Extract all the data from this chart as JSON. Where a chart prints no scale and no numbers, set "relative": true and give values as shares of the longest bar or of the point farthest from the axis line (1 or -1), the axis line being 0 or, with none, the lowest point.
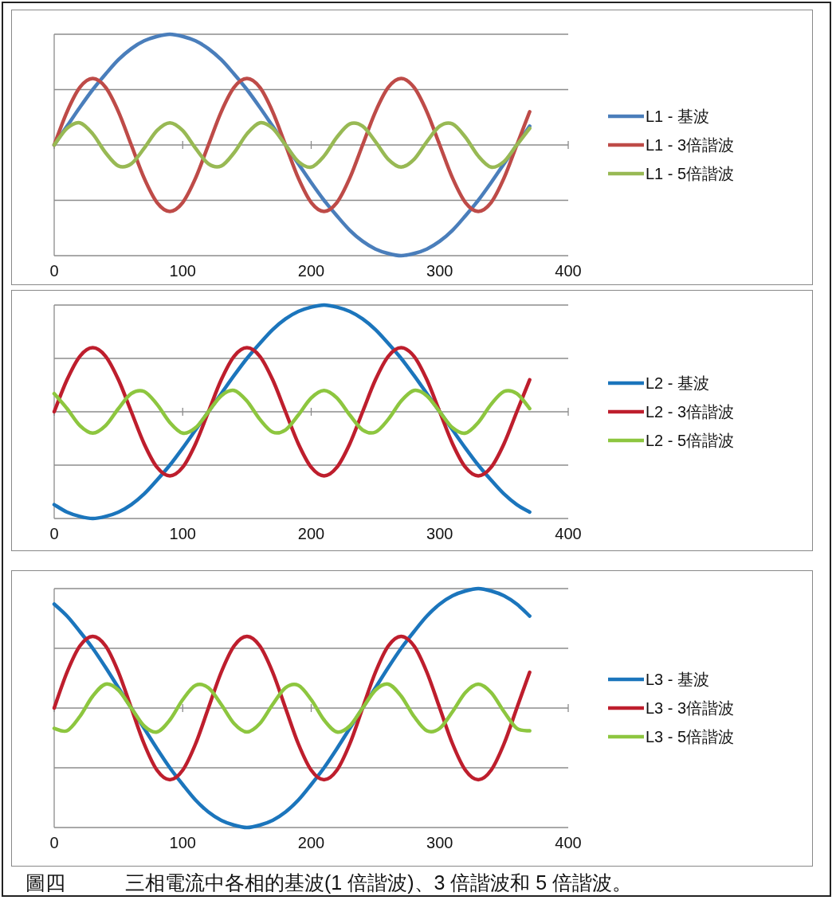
{
  "chart_data": [
    {
      "type": "line",
      "relative": true,
      "xlim": [
        0,
        400
      ],
      "xticks": [
        0,
        100,
        200,
        300,
        400
      ],
      "grid": "y",
      "legend": "right",
      "x": [
        0,
        10,
        20,
        30,
        40,
        50,
        60,
        70,
        80,
        90,
        100,
        110,
        120,
        130,
        140,
        150,
        160,
        170,
        180,
        190,
        200,
        210,
        220,
        230,
        240,
        250,
        260,
        270,
        280,
        290,
        300,
        310,
        320,
        330,
        340,
        350,
        360,
        370
      ],
      "series": [
        {
          "name": "L1 - 基波",
          "color": "#4a7ebb",
          "values": [
            0,
            0.17,
            0.34,
            0.5,
            0.64,
            0.77,
            0.87,
            0.94,
            0.98,
            1,
            0.98,
            0.94,
            0.87,
            0.77,
            0.64,
            0.5,
            0.34,
            0.17,
            0,
            -0.17,
            -0.34,
            -0.5,
            -0.64,
            -0.77,
            -0.87,
            -0.94,
            -0.98,
            -1,
            -0.98,
            -0.94,
            -0.87,
            -0.77,
            -0.64,
            -0.5,
            -0.34,
            -0.17,
            0,
            0.17
          ]
        },
        {
          "name": "L1 - 3倍諧波",
          "color": "#be4b48",
          "values": [
            0,
            0.3,
            0.52,
            0.6,
            0.52,
            0.3,
            0,
            -0.3,
            -0.52,
            -0.6,
            -0.52,
            -0.3,
            0,
            0.3,
            0.52,
            0.6,
            0.52,
            0.3,
            0,
            -0.3,
            -0.52,
            -0.6,
            -0.52,
            -0.3,
            0,
            0.3,
            0.52,
            0.6,
            0.52,
            0.3,
            0,
            -0.3,
            -0.52,
            -0.6,
            -0.52,
            -0.3,
            0,
            0.3
          ]
        },
        {
          "name": "L1 - 5倍諧波",
          "color": "#98b954",
          "values": [
            0,
            0.15,
            0.2,
            0.1,
            -0.07,
            -0.19,
            -0.17,
            -0.03,
            0.13,
            0.2,
            0.13,
            -0.03,
            -0.17,
            -0.19,
            -0.07,
            0.1,
            0.2,
            0.15,
            0,
            -0.15,
            -0.2,
            -0.1,
            0.07,
            0.19,
            0.17,
            0.03,
            -0.13,
            -0.2,
            -0.13,
            0.03,
            0.17,
            0.19,
            0.07,
            -0.1,
            -0.2,
            -0.15,
            0,
            0.15
          ]
        }
      ]
    },
    {
      "type": "line",
      "relative": true,
      "xlim": [
        0,
        400
      ],
      "xticks": [
        0,
        100,
        200,
        300,
        400
      ],
      "grid": "y",
      "legend": "right",
      "x": [
        0,
        10,
        20,
        30,
        40,
        50,
        60,
        70,
        80,
        90,
        100,
        110,
        120,
        130,
        140,
        150,
        160,
        170,
        180,
        190,
        200,
        210,
        220,
        230,
        240,
        250,
        260,
        270,
        280,
        290,
        300,
        310,
        320,
        330,
        340,
        350,
        360,
        370
      ],
      "series": [
        {
          "name": "L2 - 基波",
          "color": "#1b75bc",
          "values": [
            -0.87,
            -0.94,
            -0.98,
            -1,
            -0.98,
            -0.94,
            -0.87,
            -0.77,
            -0.64,
            -0.5,
            -0.34,
            -0.17,
            0,
            0.17,
            0.34,
            0.5,
            0.64,
            0.77,
            0.87,
            0.94,
            0.98,
            1,
            0.98,
            0.94,
            0.87,
            0.77,
            0.64,
            0.5,
            0.34,
            0.17,
            0,
            -0.17,
            -0.34,
            -0.5,
            -0.64,
            -0.77,
            -0.87,
            -0.94
          ]
        },
        {
          "name": "L2 - 3倍諧波",
          "color": "#be1e2d",
          "values": [
            0,
            0.3,
            0.52,
            0.6,
            0.52,
            0.3,
            0,
            -0.3,
            -0.52,
            -0.6,
            -0.52,
            -0.3,
            0,
            0.3,
            0.52,
            0.6,
            0.52,
            0.3,
            0,
            -0.3,
            -0.52,
            -0.6,
            -0.52,
            -0.3,
            0,
            0.3,
            0.52,
            0.6,
            0.52,
            0.3,
            0,
            -0.3,
            -0.52,
            -0.6,
            -0.52,
            -0.3,
            0,
            0.3
          ]
        },
        {
          "name": "L2 - 5倍諧波",
          "color": "#8dc63f",
          "values": [
            0.17,
            0.03,
            -0.13,
            -0.2,
            -0.13,
            0.03,
            0.17,
            0.19,
            0.07,
            -0.1,
            -0.2,
            -0.15,
            0,
            0.15,
            0.2,
            0.1,
            -0.07,
            -0.19,
            -0.17,
            -0.03,
            0.13,
            0.2,
            0.13,
            -0.03,
            -0.17,
            -0.19,
            -0.07,
            0.1,
            0.2,
            0.15,
            0,
            -0.15,
            -0.2,
            -0.1,
            0.07,
            0.19,
            0.17,
            0.03
          ]
        }
      ]
    },
    {
      "type": "line",
      "relative": true,
      "xlim": [
        0,
        400
      ],
      "xticks": [
        0,
        100,
        200,
        300,
        400
      ],
      "grid": "y",
      "legend": "right",
      "x": [
        0,
        10,
        20,
        30,
        40,
        50,
        60,
        70,
        80,
        90,
        100,
        110,
        120,
        130,
        140,
        150,
        160,
        170,
        180,
        190,
        200,
        210,
        220,
        230,
        240,
        250,
        260,
        270,
        280,
        290,
        300,
        310,
        320,
        330,
        340,
        350,
        360,
        370
      ],
      "series": [
        {
          "name": "L3 - 基波",
          "color": "#1b75bc",
          "values": [
            0.87,
            0.77,
            0.64,
            0.5,
            0.34,
            0.17,
            0,
            -0.17,
            -0.34,
            -0.5,
            -0.64,
            -0.77,
            -0.87,
            -0.94,
            -0.98,
            -1,
            -0.98,
            -0.94,
            -0.87,
            -0.77,
            -0.64,
            -0.5,
            -0.34,
            -0.17,
            0,
            0.17,
            0.34,
            0.5,
            0.64,
            0.77,
            0.87,
            0.94,
            0.98,
            1,
            0.98,
            0.94,
            0.87,
            0.77
          ]
        },
        {
          "name": "L3 - 3倍諧波",
          "color": "#be1e2d",
          "values": [
            0,
            0.3,
            0.52,
            0.6,
            0.52,
            0.3,
            0,
            -0.3,
            -0.52,
            -0.6,
            -0.52,
            -0.3,
            0,
            0.3,
            0.52,
            0.6,
            0.52,
            0.3,
            0,
            -0.3,
            -0.52,
            -0.6,
            -0.52,
            -0.3,
            0,
            0.3,
            0.52,
            0.6,
            0.52,
            0.3,
            0,
            -0.3,
            -0.52,
            -0.6,
            -0.52,
            -0.3,
            0,
            0.3
          ]
        },
        {
          "name": "L3 - 5倍諧波",
          "color": "#8dc63f",
          "values": [
            -0.17,
            -0.19,
            -0.07,
            0.1,
            0.2,
            0.15,
            0,
            -0.15,
            -0.2,
            -0.1,
            0.07,
            0.19,
            0.17,
            0.03,
            -0.13,
            -0.2,
            -0.13,
            0.03,
            0.17,
            0.19,
            0.07,
            -0.1,
            -0.2,
            -0.15,
            0,
            0.15,
            0.2,
            0.1,
            -0.07,
            -0.19,
            -0.17,
            -0.03,
            0.13,
            0.2,
            0.13,
            -0.03,
            -0.17,
            -0.19
          ]
        }
      ],
      "annotations": [
        "圖四　　　三相電流中各相的基波(1 倍諧波)、3 倍諧波和 5 倍諧波。"
      ]
    }
  ]
}
